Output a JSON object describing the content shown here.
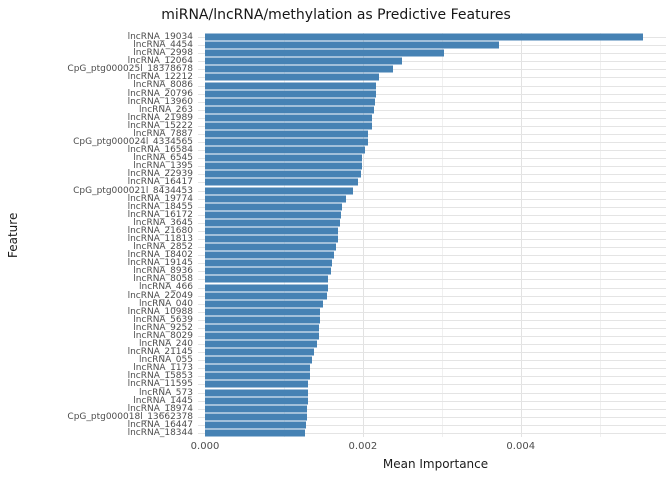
{
  "colors": {
    "bar": "#4682b4",
    "grid_major": "#e2e2e2",
    "grid_minor": "#f0f0f0",
    "axis_text": "#4d4d4d",
    "title_text": "#171717"
  },
  "chart_data": {
    "type": "bar",
    "orientation": "horizontal",
    "title": "miRNA/lncRNA/methylation as Predictive Features",
    "xlabel": "Mean Importance",
    "ylabel": "Feature",
    "xlim": [
      0,
      0.00584
    ],
    "grid": true,
    "legend": false,
    "x_ticks": [
      {
        "value": 0.0,
        "label": "0.000"
      },
      {
        "value": 0.002,
        "label": "0.002"
      },
      {
        "value": 0.004,
        "label": "0.004"
      }
    ],
    "x_major_gridlines": [
      0.002,
      0.004
    ],
    "x_minor_gridlines": [
      0.001,
      0.003,
      0.005
    ],
    "categories": [
      "lncRNA_19034",
      "lncRNA_4454",
      "lncRNA_2998",
      "lncRNA_12064",
      "CpG_ptg000025l_18378678",
      "lncRNA_12212",
      "lncRNA_8086",
      "lncRNA_20796",
      "lncRNA_13960",
      "lncRNA_263",
      "lncRNA_21989",
      "lncRNA_15222",
      "lncRNA_7887",
      "CpG_ptg000024l_4334565",
      "lncRNA_16584",
      "lncRNA_6545",
      "lncRNA_1395",
      "lncRNA_22939",
      "lncRNA_16417",
      "CpG_ptg000021l_8434453",
      "lncRNA_19774",
      "lncRNA_18455",
      "lncRNA_16172",
      "lncRNA_3645",
      "lncRNA_21680",
      "lncRNA_11813",
      "lncRNA_2852",
      "lncRNA_18402",
      "lncRNA_19145",
      "lncRNA_8936",
      "lncRNA_8058",
      "lncRNA_466",
      "lncRNA_22049",
      "lncRNA_040",
      "lncRNA_10988",
      "lncRNA_5639",
      "lncRNA_9252",
      "lncRNA_8029",
      "lncRNA_240",
      "lncRNA_21145",
      "lncRNA_055",
      "lncRNA_1173",
      "lncRNA_15853",
      "lncRNA_11595",
      "lncRNA_573",
      "lncRNA_1445",
      "lncRNA_18974",
      "CpG_ptg000018l_13662378",
      "lncRNA_16447",
      "lncRNA_18344"
    ],
    "values": [
      0.00555,
      0.00373,
      0.00303,
      0.00249,
      0.00238,
      0.0022,
      0.00216,
      0.00216,
      0.00215,
      0.00214,
      0.00211,
      0.00211,
      0.00207,
      0.00206,
      0.00203,
      0.00199,
      0.00199,
      0.00197,
      0.00194,
      0.00187,
      0.00179,
      0.00173,
      0.00172,
      0.00171,
      0.00169,
      0.00168,
      0.00166,
      0.00163,
      0.00161,
      0.0016,
      0.00156,
      0.00156,
      0.00155,
      0.0015,
      0.00146,
      0.00146,
      0.00145,
      0.00144,
      0.00142,
      0.00138,
      0.00136,
      0.00133,
      0.00133,
      0.00131,
      0.0013,
      0.0013,
      0.00129,
      0.00129,
      0.00128,
      0.00127
    ]
  }
}
